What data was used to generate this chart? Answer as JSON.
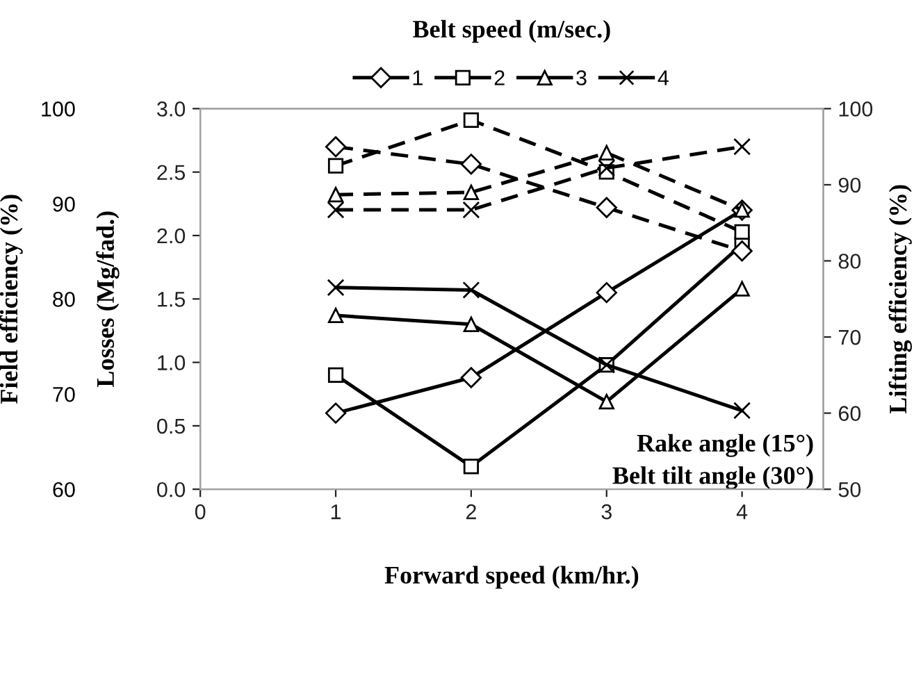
{
  "chart_data": {
    "type": "line",
    "xlabel": "Forward speed (km/hr.)",
    "ylabel": "Losses (Mg/fad.)",
    "y2label": "Lifting efficiency (%)",
    "y3label": "Field efficiency (%)",
    "legend_title": "Belt speed (m/sec.)",
    "legend": "top",
    "grid": false,
    "x": [
      1,
      2,
      3,
      4
    ],
    "xlim": [
      0,
      4.6
    ],
    "xticks": [
      0,
      1,
      2,
      3,
      4
    ],
    "ylim": [
      0,
      3
    ],
    "yticks": [
      {
        "value": 0,
        "label": "0.0"
      },
      {
        "value": 0.5,
        "label": "0.5"
      },
      {
        "value": 1,
        "label": "1.0"
      },
      {
        "value": 1.5,
        "label": "1.5"
      },
      {
        "value": 2,
        "label": "2.0"
      },
      {
        "value": 2.5,
        "label": "2.5"
      },
      {
        "value": 3,
        "label": "3.0"
      }
    ],
    "y2lim": [
      50,
      100
    ],
    "y2ticks": [
      50,
      60,
      70,
      80,
      90,
      100
    ],
    "y3lim": [
      60,
      100
    ],
    "y3ticks": [
      60,
      70,
      80,
      90,
      100
    ],
    "series": [
      {
        "name": "1",
        "color": "#000000",
        "marker": "diamond",
        "line_style": "solid",
        "values": [
          0.6,
          0.88,
          1.55,
          2.2
        ]
      },
      {
        "name": "2",
        "color": "#000000",
        "marker": "square",
        "line_style": "solid",
        "values": [
          0.9,
          0.18,
          0.98,
          1.93
        ]
      },
      {
        "name": "3",
        "color": "#000000",
        "marker": "triangle",
        "line_style": "solid",
        "values": [
          1.37,
          1.3,
          0.69,
          1.58
        ]
      },
      {
        "name": "4",
        "color": "#000000",
        "marker": "cross",
        "line_style": "solid",
        "values": [
          1.59,
          1.57,
          0.98,
          0.62
        ]
      },
      {
        "color": "#000000",
        "marker": "diamond",
        "line_style": "dashed",
        "axis": "y2",
        "values": [
          95,
          92.7,
          87,
          81.3
        ]
      },
      {
        "color": "#000000",
        "marker": "square",
        "line_style": "dashed",
        "axis": "y2",
        "values": [
          92.5,
          98.5,
          91.7,
          83.8
        ]
      },
      {
        "color": "#000000",
        "marker": "triangle",
        "line_style": "dashed",
        "axis": "y2",
        "values": [
          88.7,
          89,
          94.2,
          86.7
        ]
      },
      {
        "color": "#000000",
        "marker": "cross",
        "line_style": "dashed",
        "axis": "y2",
        "values": [
          86.7,
          86.7,
          92.2,
          95
        ]
      }
    ],
    "annotations": [
      "Rake angle (15°)",
      "Belt tilt angle (30°)"
    ]
  }
}
